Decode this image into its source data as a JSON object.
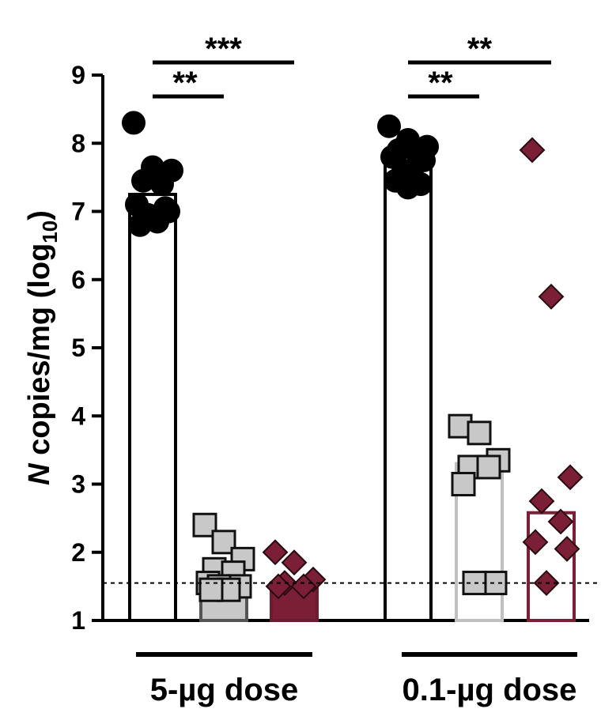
{
  "chart_data": {
    "type": "bar",
    "ylabel_prefix": "N",
    "ylabel_main": " copies/mg  (log",
    "ylabel_sub": "10",
    "ylabel_close": ")",
    "ylim": [
      1,
      9
    ],
    "yticks": [
      "1",
      "2",
      "3",
      "4",
      "5",
      "6",
      "7",
      "8",
      "9"
    ],
    "limit_of_detection": 1.55,
    "groups": [
      {
        "label": "5-µg dose",
        "bars": [
          {
            "mean": 7.25,
            "color": "#000000",
            "fill": "#ffffff",
            "marker": "circle",
            "marker_fill": "#000000",
            "points": [
              8.3,
              7.65,
              7.6,
              7.45,
              7.4,
              7.1,
              7.0,
              6.95,
              6.85,
              6.8,
              7.05,
              6.9
            ]
          },
          {
            "mean": 1.55,
            "color": "#555555",
            "fill": "#c8c8c8",
            "marker": "square",
            "marker_fill": "#c8c8c8",
            "points": [
              2.4,
              2.15,
              1.9,
              1.75,
              1.7,
              1.55,
              1.5,
              1.5,
              1.45,
              1.45
            ]
          },
          {
            "mean": 1.55,
            "color": "#6e1a2f",
            "fill": "#7a1f35",
            "marker": "diamond",
            "marker_fill": "#7a1f35",
            "points": [
              2.0,
              1.85,
              1.6,
              1.55,
              1.5,
              1.5
            ]
          }
        ],
        "significance": [
          {
            "label": "**",
            "from_bar": 0,
            "to_bar": 1,
            "level": 0
          },
          {
            "label": "***",
            "from_bar": 0,
            "to_bar": 2,
            "level": 1
          }
        ]
      },
      {
        "label": "0.1-µg dose",
        "bars": [
          {
            "mean": 7.8,
            "color": "#000000",
            "fill": "#ffffff",
            "marker": "circle",
            "marker_fill": "#000000",
            "points": [
              8.25,
              8.05,
              7.95,
              7.9,
              7.85,
              7.8,
              7.75,
              7.6,
              7.5,
              7.45,
              7.4,
              7.35
            ]
          },
          {
            "mean": 3.3,
            "color": "#c0c0c0",
            "fill": "#ffffff",
            "marker": "square",
            "marker_fill": "#c8c8c8",
            "points": [
              3.85,
              3.75,
              3.35,
              3.25,
              3.25,
              3.0,
              1.55,
              1.55
            ]
          },
          {
            "mean": 2.58,
            "color": "#7a1f35",
            "fill": "#ffffff",
            "marker": "diamond",
            "marker_fill": "#7a1f35",
            "points": [
              7.9,
              5.75,
              3.1,
              2.75,
              2.45,
              2.15,
              2.05,
              1.55
            ]
          }
        ],
        "significance": [
          {
            "label": "**",
            "from_bar": 0,
            "to_bar": 1,
            "level": 0
          },
          {
            "label": "**",
            "from_bar": 0,
            "to_bar": 2,
            "level": 1
          }
        ]
      }
    ]
  }
}
